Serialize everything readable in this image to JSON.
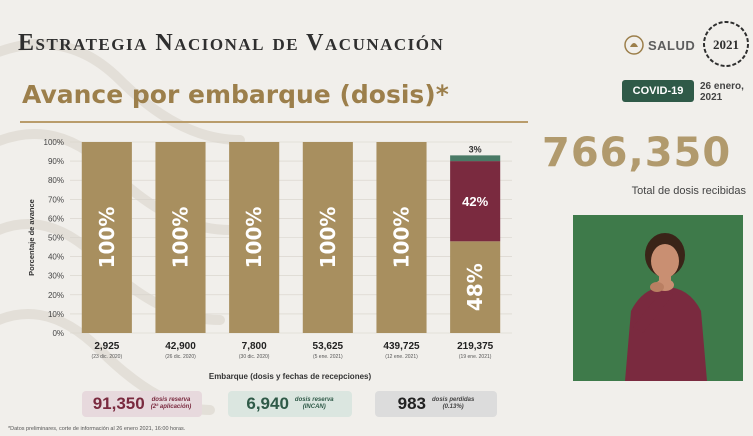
{
  "header": {
    "title": "Estrategia Nacional de Vacunación",
    "subtitle": "Avance por embarque (dosis)*",
    "salud_logo": "SALUD",
    "year_logo": "2021",
    "covid_badge": "COVID-19",
    "date_line1": "26 enero,",
    "date_line2": "2021"
  },
  "total": {
    "value": "766,350",
    "label": "Total de dosis recibidas"
  },
  "chart_data": {
    "type": "bar",
    "stacked": true,
    "ylabel": "Porcentaje de avance",
    "xlabel": "Embarque (dosis y fechas de recepciones)",
    "ylim": [
      0,
      100
    ],
    "yticks": [
      "0%",
      "10%",
      "20%",
      "30%",
      "40%",
      "50%",
      "60%",
      "70%",
      "80%",
      "90%",
      "100%"
    ],
    "categories": [
      {
        "doses": "2,925",
        "date": "(23 dic. 2020)"
      },
      {
        "doses": "42,900",
        "date": "(26 dic. 2020)"
      },
      {
        "doses": "7,800",
        "date": "(30 dic. 2020)"
      },
      {
        "doses": "53,625",
        "date": "(5 ene. 2021)"
      },
      {
        "doses": "439,725",
        "date": "(12 ene. 2021)"
      },
      {
        "doses": "219,375",
        "date": "(19 ene. 2021)"
      }
    ],
    "series": [
      {
        "color": "#a88f5f",
        "values": [
          100,
          100,
          100,
          100,
          100,
          48
        ],
        "labels": [
          "100%",
          "100%",
          "100%",
          "100%",
          "100%",
          "48%"
        ]
      },
      {
        "color": "#7a2a3f",
        "values": [
          0,
          0,
          0,
          0,
          0,
          42
        ],
        "labels": [
          "",
          "",
          "",
          "",
          "",
          "42%"
        ]
      },
      {
        "color": "#4a7a66",
        "values": [
          0,
          0,
          0,
          0,
          0,
          3
        ],
        "labels": [
          "",
          "",
          "",
          "",
          "",
          "3%"
        ]
      }
    ]
  },
  "summary": [
    {
      "value": "91,350",
      "label_line1": "dosis reserva",
      "label_line2": "(2ª aplicación)"
    },
    {
      "value": "6,940",
      "label_line1": "dosis reserva",
      "label_line2": "(INCAN)"
    },
    {
      "value": "983",
      "label_line1": "dosis perdidas",
      "label_line2": "(0.13%)"
    }
  ],
  "footnote": "*Datos preliminares, corte de información al 26 enero 2021, 16:00 horas."
}
